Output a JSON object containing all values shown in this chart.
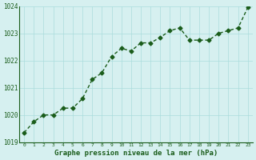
{
  "x": [
    0,
    1,
    2,
    3,
    4,
    5,
    6,
    7,
    8,
    9,
    10,
    11,
    12,
    13,
    14,
    15,
    16,
    17,
    18,
    19,
    20,
    21,
    22,
    23
  ],
  "y": [
    1019.35,
    1019.75,
    1020.0,
    1020.0,
    1020.25,
    1020.25,
    1020.6,
    1021.3,
    1021.55,
    1022.15,
    1022.45,
    1022.35,
    1022.65,
    1022.65,
    1022.85,
    1023.1,
    1023.2,
    1022.75,
    1022.75,
    1022.75,
    1023.0,
    1023.1,
    1023.2,
    1023.95
  ],
  "line_color": "#1a5c1a",
  "marker_color": "#1a5c1a",
  "bg_color": "#d6f0f0",
  "grid_color": "#aadddd",
  "xlabel": "Graphe pression niveau de la mer (hPa)",
  "xlabel_color": "#1a5c1a",
  "tick_color": "#1a5c1a",
  "ylim": [
    1019,
    1024
  ],
  "xlim": [
    0,
    23
  ],
  "yticks": [
    1019,
    1020,
    1021,
    1022,
    1023,
    1024
  ],
  "xticks": [
    0,
    1,
    2,
    3,
    4,
    5,
    6,
    7,
    8,
    9,
    10,
    11,
    12,
    13,
    14,
    15,
    16,
    17,
    18,
    19,
    20,
    21,
    22,
    23
  ]
}
